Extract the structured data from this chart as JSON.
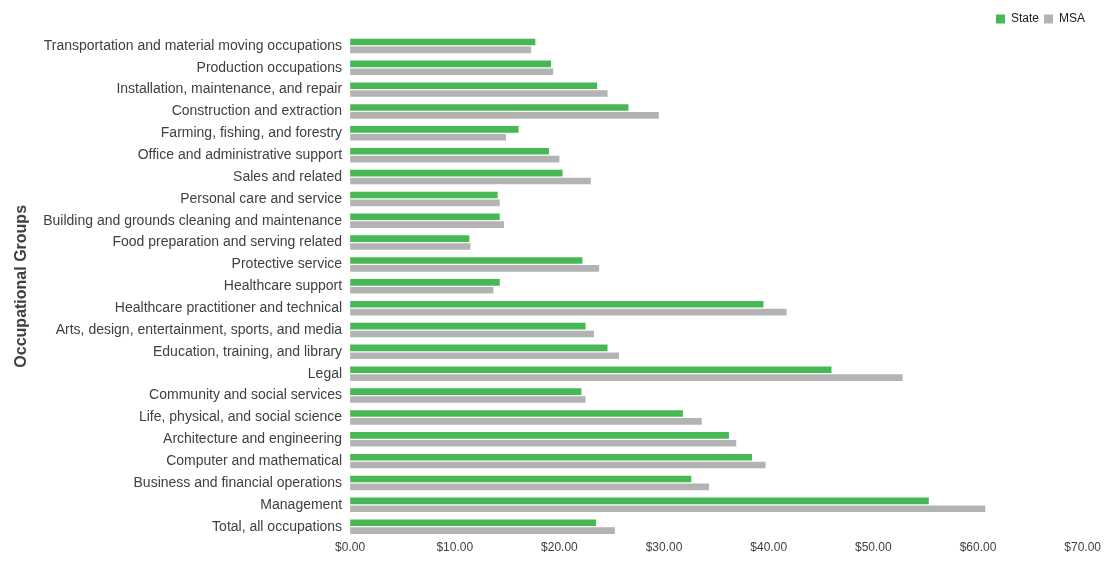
{
  "chart_data": {
    "type": "bar",
    "orientation": "horizontal",
    "ylabel": "Occupational Groups",
    "categories": [
      "Transportation and material moving occupations",
      "Production occupations",
      "Installation, maintenance, and repair",
      "Construction and extraction",
      "Farming, fishing, and forestry",
      "Office and administrative support",
      "Sales and related",
      "Personal care and service",
      "Building and grounds cleaning and maintenance",
      "Food preparation and serving related",
      "Protective service",
      "Healthcare support",
      "Healthcare practitioner and technical",
      "Arts, design, entertainment, sports, and media",
      "Education, training, and library",
      "Legal",
      "Community and social services",
      "Life, physical, and social science",
      "Architecture and engineering",
      "Computer and mathematical",
      "Business and financial operations",
      "Management",
      "Total, all occupations"
    ],
    "series": [
      {
        "name": "State",
        "color": "#46b955",
        "values": [
          17.7,
          19.2,
          23.6,
          26.6,
          16.1,
          19.0,
          20.3,
          14.1,
          14.3,
          11.4,
          22.2,
          14.3,
          39.5,
          22.5,
          24.6,
          46.0,
          22.1,
          31.8,
          36.2,
          38.4,
          32.6,
          55.3,
          23.5
        ]
      },
      {
        "name": "MSA",
        "color": "#b3b3b3",
        "values": [
          17.3,
          19.4,
          24.6,
          29.5,
          14.9,
          20.0,
          23.0,
          14.3,
          14.7,
          11.5,
          23.8,
          13.7,
          41.7,
          23.3,
          25.7,
          52.8,
          22.5,
          33.6,
          36.9,
          39.7,
          34.3,
          60.7,
          25.3
        ]
      }
    ],
    "xlim": [
      0,
      70
    ],
    "xticks": [
      {
        "value": 0,
        "label": "$0.00"
      },
      {
        "value": 10,
        "label": "$10.00"
      },
      {
        "value": 20,
        "label": "$20.00"
      },
      {
        "value": 30,
        "label": "$30.00"
      },
      {
        "value": 40,
        "label": "$40.00"
      },
      {
        "value": 50,
        "label": "$50.00"
      },
      {
        "value": 60,
        "label": "$60.00"
      },
      {
        "value": 70,
        "label": "$70.00"
      }
    ],
    "legend": "top right",
    "grid": false
  }
}
